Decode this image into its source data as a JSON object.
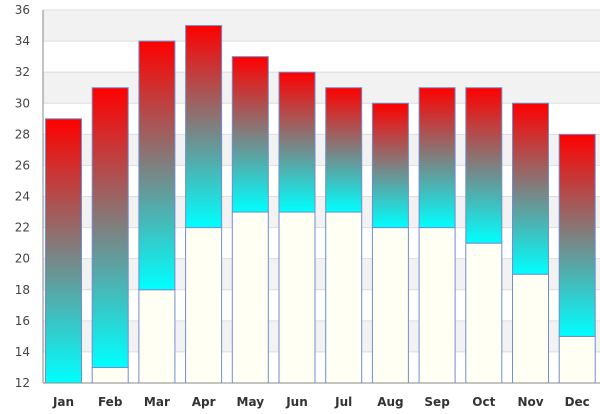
{
  "chart_data": {
    "type": "bar",
    "subtype": "floating-range",
    "title": "",
    "xlabel": "",
    "ylabel": "",
    "categories": [
      "Jan",
      "Feb",
      "Mar",
      "Apr",
      "May",
      "Jun",
      "Jul",
      "Aug",
      "Sep",
      "Oct",
      "Nov",
      "Dec"
    ],
    "ranges": [
      {
        "low": 12,
        "high": 29
      },
      {
        "low": 13,
        "high": 31
      },
      {
        "low": 18,
        "high": 34
      },
      {
        "low": 22,
        "high": 35
      },
      {
        "low": 23,
        "high": 33
      },
      {
        "low": 23,
        "high": 32
      },
      {
        "low": 23,
        "high": 31
      },
      {
        "low": 22,
        "high": 30
      },
      {
        "low": 22,
        "high": 31
      },
      {
        "low": 21,
        "high": 31
      },
      {
        "low": 19,
        "high": 30
      },
      {
        "low": 15,
        "high": 28
      }
    ],
    "ylim": [
      12,
      36
    ],
    "y_ticks": [
      "12",
      "14",
      "16",
      "18",
      "20",
      "22",
      "24",
      "26",
      "28",
      "30",
      "32",
      "34",
      "36"
    ],
    "grid": true,
    "colors": {
      "bar_top": "#ff0000",
      "bar_bottom": "#00ffff",
      "bar_border": "#6f8fcf",
      "below_bar": "#fffff4",
      "band_light": "#ffffff",
      "band_dark": "#f2f2f2",
      "grid": "#dddddd",
      "axis": "#888888"
    }
  }
}
